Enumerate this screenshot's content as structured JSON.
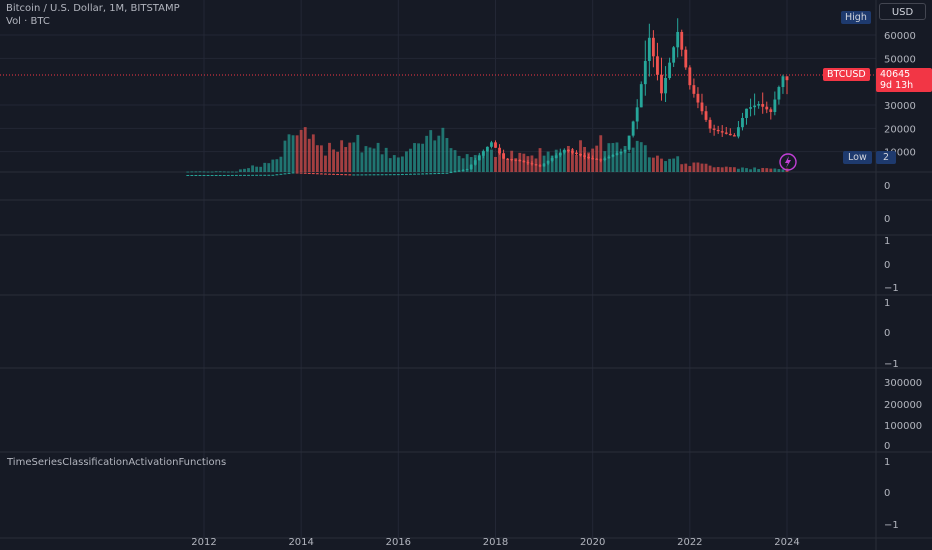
{
  "legend": {
    "title": "Bitcoin / U.S. Dollar, 1M, BITSTAMP",
    "volume": "Vol · BTC"
  },
  "toolbar": {
    "currency": "USD"
  },
  "labels": {
    "high": "High",
    "low": "Low",
    "low_value": "2",
    "symbol": "BTCUSD",
    "price": "40645",
    "countdown": "9d 13h"
  },
  "study": {
    "name": "TimeSeriesClassificationActivationFunctions"
  },
  "colors": {
    "up": "#26a69a",
    "down": "#ef5350",
    "grid": "#232735",
    "text": "#b2b5be",
    "background": "#161a25"
  },
  "icons": {
    "realtime": "lightning-icon"
  },
  "chart_data": {
    "type": "candlestick",
    "symbol": "BTCUSD",
    "interval": "1M",
    "exchange": "BITSTAMP",
    "x_ticks": [
      "2012",
      "2014",
      "2016",
      "2018",
      "2020",
      "2022",
      "2024"
    ],
    "price_axis_ticks": [
      "60000",
      "50000",
      "30000",
      "20000",
      "10000"
    ],
    "last_price": 40645,
    "price_series": [
      {
        "date": "2011-09",
        "close": 5
      },
      {
        "date": "2012-06",
        "close": 7
      },
      {
        "date": "2013-03",
        "close": 90
      },
      {
        "date": "2013-06",
        "close": 100
      },
      {
        "date": "2013-11",
        "close": 1100
      },
      {
        "date": "2014-06",
        "close": 600
      },
      {
        "date": "2015-01",
        "close": 220
      },
      {
        "date": "2016-01",
        "close": 370
      },
      {
        "date": "2016-07",
        "close": 650
      },
      {
        "date": "2017-01",
        "close": 960
      },
      {
        "date": "2017-06",
        "close": 2500
      },
      {
        "date": "2017-12",
        "close": 14000
      },
      {
        "date": "2018-03",
        "close": 7000
      },
      {
        "date": "2018-06",
        "close": 6400
      },
      {
        "date": "2018-12",
        "close": 3700
      },
      {
        "date": "2019-06",
        "close": 10800
      },
      {
        "date": "2019-12",
        "close": 7200
      },
      {
        "date": "2020-03",
        "close": 6400
      },
      {
        "date": "2020-09",
        "close": 10800
      },
      {
        "date": "2020-12",
        "close": 29000
      },
      {
        "date": "2021-03",
        "close": 58800
      },
      {
        "date": "2021-06",
        "close": 35000
      },
      {
        "date": "2021-10",
        "close": 61300
      },
      {
        "date": "2022-01",
        "close": 38500
      },
      {
        "date": "2022-06",
        "close": 19900
      },
      {
        "date": "2022-12",
        "close": 16500
      },
      {
        "date": "2023-03",
        "close": 28400
      },
      {
        "date": "2023-06",
        "close": 30400
      },
      {
        "date": "2023-09",
        "close": 27000
      },
      {
        "date": "2023-11",
        "close": 37700
      },
      {
        "date": "2023-12",
        "close": 42300
      },
      {
        "date": "2024-01",
        "close": 40645
      }
    ],
    "volume_scale": [
      {
        "date": "2012-09",
        "v": 0.05
      },
      {
        "date": "2013-06",
        "v": 0.25
      },
      {
        "date": "2013-12",
        "v": 1.0
      },
      {
        "date": "2014-06",
        "v": 0.55
      },
      {
        "date": "2015-01",
        "v": 0.85
      },
      {
        "date": "2016-01",
        "v": 0.35
      },
      {
        "date": "2016-12",
        "v": 0.95
      },
      {
        "date": "2017-06",
        "v": 0.4
      },
      {
        "date": "2017-12",
        "v": 0.55
      },
      {
        "date": "2018-06",
        "v": 0.4
      },
      {
        "date": "2019-06",
        "v": 0.5
      },
      {
        "date": "2020-03",
        "v": 0.75
      },
      {
        "date": "2021-01",
        "v": 0.6
      },
      {
        "date": "2022-01",
        "v": 0.2
      },
      {
        "date": "2023-06",
        "v": 0.08
      }
    ],
    "panes": [
      {
        "name": "pane-2",
        "ticks": [
          "0"
        ]
      },
      {
        "name": "pane-3",
        "ticks": [
          "0"
        ]
      },
      {
        "name": "pane-4",
        "ticks": [
          "1",
          "0",
          "−1"
        ]
      },
      {
        "name": "pane-5",
        "ticks": [
          "1",
          "0",
          "−1"
        ]
      },
      {
        "name": "pane-6",
        "ticks": [
          "300000",
          "200000",
          "100000",
          "0"
        ]
      },
      {
        "name": "pane-7",
        "ticks": [
          "1",
          "0",
          "−1"
        ]
      }
    ]
  }
}
